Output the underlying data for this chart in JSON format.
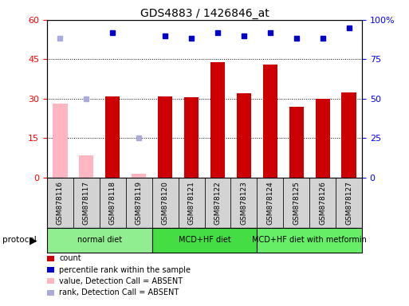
{
  "title": "GDS4883 / 1426846_at",
  "samples": [
    "GSM878116",
    "GSM878117",
    "GSM878118",
    "GSM878119",
    "GSM878120",
    "GSM878121",
    "GSM878122",
    "GSM878123",
    "GSM878124",
    "GSM878125",
    "GSM878126",
    "GSM878127"
  ],
  "count_values": [
    null,
    null,
    31,
    null,
    31,
    30.5,
    44,
    32,
    43,
    27,
    30,
    32.5
  ],
  "count_absent": [
    28,
    8.5,
    null,
    1.5,
    null,
    null,
    null,
    null,
    null,
    null,
    null,
    null
  ],
  "percentile_values": [
    null,
    null,
    55,
    null,
    54,
    53,
    55,
    54,
    55,
    53,
    53,
    57
  ],
  "percentile_absent": [
    53,
    30,
    null,
    15,
    null,
    null,
    null,
    null,
    null,
    null,
    null,
    null
  ],
  "protocols": [
    {
      "label": "normal diet",
      "start": 0,
      "end": 4,
      "color": "#90EE90"
    },
    {
      "label": "MCD+HF diet",
      "start": 4,
      "end": 8,
      "color": "#44DD44"
    },
    {
      "label": "MCD+HF diet with metformin",
      "start": 8,
      "end": 12,
      "color": "#66EE66"
    }
  ],
  "left_ylim": [
    0,
    60
  ],
  "right_ylim": [
    0,
    100
  ],
  "left_yticks": [
    0,
    15,
    30,
    45,
    60
  ],
  "right_yticks": [
    0,
    25,
    50,
    75,
    100
  ],
  "right_yticklabels": [
    "0",
    "25",
    "50",
    "75",
    "100%"
  ],
  "bar_color_red": "#CC0000",
  "bar_color_pink": "#FFB6C1",
  "dot_color_blue": "#0000CC",
  "dot_color_lightblue": "#AAAADD",
  "legend_items": [
    {
      "color": "#CC0000",
      "label": "count"
    },
    {
      "color": "#0000CC",
      "label": "percentile rank within the sample"
    },
    {
      "color": "#FFB6C1",
      "label": "value, Detection Call = ABSENT"
    },
    {
      "color": "#AAAADD",
      "label": "rank, Detection Call = ABSENT"
    }
  ]
}
